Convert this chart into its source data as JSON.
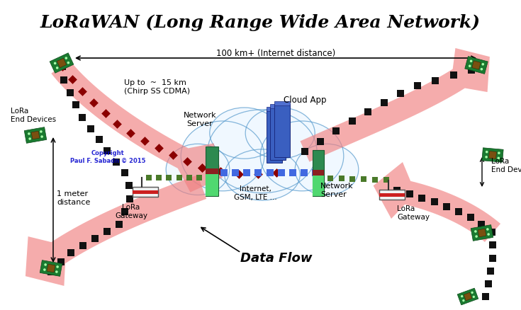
{
  "title": "LoRaWAN (Long Range Wide Area Network)",
  "title_fontsize": 18,
  "bg_color": "#ffffff",
  "arrow_color": "#f08080",
  "arrow_alpha": 0.65,
  "dashed_dark": "#1a1a1a",
  "dashed_red": "#8b0000",
  "dashed_green": "#4a7a2a",
  "dashed_blue": "#4169e1",
  "cloud_color": "#f0f8ff",
  "cloud_edge": "#5599cc",
  "text_distance": "100 km+ (Internet distance)",
  "text_15km": "Up to  ~  15 km\n(Chirp SS CDMA)",
  "text_1m": "1 meter\ndistance",
  "text_lora_left": "LoRa\nEnd Devices",
  "text_lora_right": "LoRa\nEnd Devices",
  "text_gateway_left": "LoRa\nGateway",
  "text_gateway_right": "LoRa\nGateway",
  "text_net_server_left": "Network\nServer",
  "text_net_server_right": "Network\nServer",
  "text_internet": "Internet,\nGSM, LTE ...",
  "text_cloud_app": "Cloud App",
  "text_dataflow": "Data Flow",
  "text_copyright": "Copyright\nPaul F. Sabadn © 2015",
  "copyright_color": "#0000cc"
}
